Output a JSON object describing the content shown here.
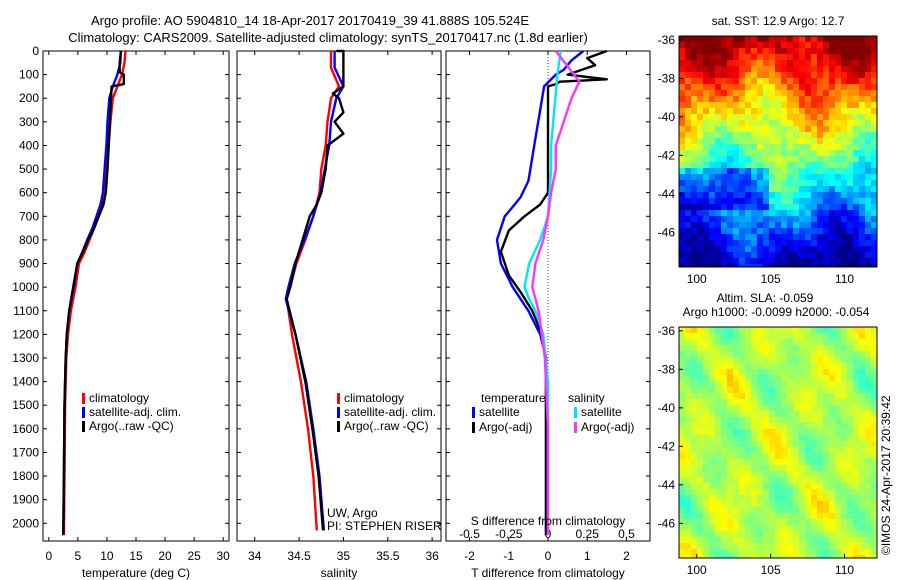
{
  "header": {
    "line1": "Argo profile: AO 5904810_14 18-Apr-2017 20170419_39 41.888S 105.524E",
    "line2": "Climatology: CARS2009. Satellite-adjusted climatology: synTS_20170417.nc (1.8d earlier)"
  },
  "credit": "©IMOS 24-Apr-2017 20:39:42",
  "colors": {
    "climatology": "#ff0000",
    "satellite": "#0000ff",
    "argo": "#000000",
    "salinity_satellite": "#00e5ff",
    "salinity_argo": "#ff33ff"
  },
  "chart_data": [
    {
      "id": "temperature",
      "type": "line",
      "xlabel": "temperature (deg C)",
      "ylabel": "",
      "xlim": [
        -1,
        31
      ],
      "ylim": [
        2075,
        0
      ],
      "xticks": [
        0,
        5,
        10,
        15,
        20,
        25,
        30
      ],
      "yticks": [
        0,
        100,
        200,
        300,
        400,
        500,
        600,
        700,
        800,
        900,
        1000,
        1100,
        1200,
        1300,
        1400,
        1500,
        1600,
        1700,
        1800,
        1900,
        2000
      ],
      "legend": [
        "climatology",
        "satellite-adj. clim.",
        "Argo(..raw -QC)"
      ],
      "series": [
        {
          "name": "climatology",
          "color": "#ff0000",
          "x": [
            13.2,
            13.0,
            12.6,
            11.8,
            11.0,
            10.6,
            10.3,
            10.0,
            9.6,
            9.1,
            8.4,
            7.8,
            7.0,
            6.2,
            5.2,
            4.6,
            3.8,
            3.3,
            3.0,
            2.8,
            2.7,
            2.6
          ],
          "y": [
            0,
            50,
            100,
            150,
            200,
            300,
            400,
            500,
            600,
            650,
            700,
            750,
            800,
            850,
            900,
            1000,
            1100,
            1200,
            1300,
            1500,
            1800,
            2050
          ]
        },
        {
          "name": "satellite-adj. clim.",
          "color": "#0000ff",
          "x": [
            12.4,
            12.3,
            11.8,
            11.0,
            10.4,
            10.1,
            9.9,
            9.6,
            9.3,
            8.9,
            8.2,
            7.5,
            6.6,
            5.8,
            4.9,
            4.3,
            3.5,
            3.1,
            2.9,
            2.7,
            2.6,
            2.5
          ],
          "y": [
            0,
            50,
            100,
            150,
            200,
            300,
            400,
            500,
            600,
            650,
            700,
            750,
            800,
            850,
            900,
            1000,
            1100,
            1200,
            1300,
            1500,
            1800,
            2050
          ]
        },
        {
          "name": "Argo(..raw -QC)",
          "color": "#000000",
          "x": [
            12.4,
            12.2,
            12.2,
            12.9,
            12.9,
            10.8,
            10.3,
            10.1,
            9.8,
            9.4,
            8.6,
            7.8,
            6.8,
            5.9,
            4.9,
            4.2,
            3.5,
            3.1,
            2.9,
            2.7,
            2.6,
            2.5
          ],
          "y": [
            0,
            50,
            90,
            100,
            140,
            150,
            400,
            500,
            600,
            650,
            700,
            750,
            800,
            850,
            900,
            1000,
            1100,
            1200,
            1300,
            1500,
            1800,
            2050
          ]
        }
      ]
    },
    {
      "id": "salinity",
      "type": "line",
      "xlabel": "salinity",
      "xlim": [
        33.8,
        36.1
      ],
      "ylim": [
        2075,
        0
      ],
      "xticks": [
        34,
        34.5,
        35,
        35.5,
        36
      ],
      "legend": [
        "climatology",
        "satellite-adj. clim.",
        "Argo(..raw -QC)"
      ],
      "annotation": [
        "UW, Argo",
        "PI: STEPHEN RISER"
      ],
      "series": [
        {
          "name": "climatology",
          "color": "#ff0000",
          "x": [
            34.86,
            34.86,
            34.95,
            34.86,
            34.82,
            34.8,
            34.75,
            34.73,
            34.66,
            34.57,
            34.47,
            34.4,
            34.36,
            34.42,
            34.52,
            34.6,
            34.66,
            34.7
          ],
          "y": [
            0,
            70,
            150,
            200,
            300,
            400,
            500,
            600,
            700,
            800,
            900,
            1000,
            1050,
            1200,
            1400,
            1600,
            1800,
            2030
          ]
        },
        {
          "name": "satellite-adj. clim.",
          "color": "#0000ff",
          "x": [
            34.9,
            34.9,
            35.0,
            34.92,
            34.86,
            34.84,
            34.79,
            34.74,
            34.66,
            34.56,
            34.45,
            34.38,
            34.35,
            34.46,
            34.58,
            34.66,
            34.73,
            34.78
          ],
          "y": [
            0,
            70,
            150,
            200,
            300,
            400,
            500,
            600,
            700,
            800,
            900,
            1000,
            1050,
            1200,
            1400,
            1600,
            1800,
            2030
          ]
        },
        {
          "name": "Argo(..raw -QC)",
          "color": "#000000",
          "x": [
            35.0,
            34.93,
            35.0,
            35.0,
            35.0,
            35.0,
            34.88,
            34.95,
            35.0,
            34.9,
            35.0,
            34.82,
            34.8,
            34.75,
            34.7,
            34.62,
            34.54,
            34.46,
            34.4,
            34.36,
            34.46,
            34.57,
            34.65,
            34.72,
            34.77
          ],
          "y": [
            0,
            0,
            0,
            80,
            120,
            150,
            180,
            200,
            260,
            300,
            350,
            400,
            500,
            600,
            650,
            700,
            800,
            900,
            1000,
            1050,
            1200,
            1400,
            1600,
            1800,
            2030
          ]
        }
      ]
    },
    {
      "id": "difference",
      "type": "line",
      "xlabel": "T difference from climatology",
      "xlabel2": "S difference from climatology",
      "xlim": [
        -2.6,
        2.6
      ],
      "x2lim": [
        -0.65,
        0.65
      ],
      "ylim": [
        2075,
        0
      ],
      "xticks": [
        -2,
        -1,
        0,
        1,
        2
      ],
      "x2ticks": [
        -0.5,
        -0.25,
        0,
        0.25,
        0.5
      ],
      "legend_titles": [
        "temperature",
        "salinity"
      ],
      "legend": [
        "satellite",
        "Argo(-adj)",
        "satellite",
        "Argo(-adj)"
      ],
      "series": [
        {
          "name": "temperature satellite",
          "color": "#0000ff",
          "x": [
            0.9,
            0.6,
            0.4,
            0.2,
            -0.1,
            -0.2,
            -0.3,
            -0.4,
            -0.5,
            -0.7,
            -0.9,
            -1.1,
            -1.3,
            -1.2,
            -0.9,
            -0.5,
            -0.2,
            -0.05,
            -0.05,
            -0.05
          ],
          "y": [
            0,
            40,
            80,
            100,
            150,
            250,
            350,
            450,
            550,
            620,
            660,
            700,
            800,
            900,
            1000,
            1100,
            1200,
            1300,
            1600,
            2050
          ]
        },
        {
          "name": "temperature Argo(-adj)",
          "color": "#000000",
          "x": [
            1.5,
            1.0,
            1.2,
            0.5,
            1.0,
            1.5,
            0.3,
            0.2,
            0.0,
            0.0,
            0.0,
            0.0,
            -0.2,
            -0.6,
            -1.0,
            -1.2,
            -1.0,
            -0.7,
            -0.4,
            -0.15,
            -0.05,
            -0.05,
            -0.05
          ],
          "y": [
            0,
            30,
            60,
            100,
            110,
            120,
            130,
            140,
            150,
            250,
            400,
            600,
            650,
            700,
            760,
            850,
            950,
            1020,
            1100,
            1200,
            1300,
            1600,
            2050
          ]
        },
        {
          "name": "salinity satellite",
          "color": "#00e5ff",
          "x": [
            0.08,
            0.06,
            0.04,
            0.02,
            0.02,
            0.01,
            0.0,
            -0.05,
            -0.12,
            -0.15,
            -0.12,
            -0.08,
            -0.03,
            0.0,
            0.0,
            0.0
          ],
          "y": [
            0,
            100,
            250,
            400,
            500,
            600,
            700,
            800,
            900,
            1000,
            1050,
            1100,
            1200,
            1400,
            1700,
            2050
          ]
        },
        {
          "name": "salinity Argo(-adj)",
          "color": "#ff33ff",
          "x": [
            0.05,
            0.12,
            0.2,
            0.15,
            0.1,
            0.05,
            0.05,
            0.02,
            0.0,
            -0.03,
            -0.08,
            -0.1,
            -0.06,
            -0.02,
            0.0,
            0.0
          ],
          "y": [
            0,
            60,
            130,
            200,
            300,
            400,
            500,
            600,
            700,
            800,
            900,
            1000,
            1100,
            1300,
            1600,
            2050
          ]
        }
      ]
    },
    {
      "id": "sst-map",
      "type": "heatmap",
      "title": "sat. SST: 12.9 Argo: 12.7",
      "xlim": [
        98.8,
        112.2
      ],
      "ylim": [
        -47.8,
        -35.8
      ],
      "xticks": [
        100,
        105,
        110
      ],
      "yticks": [
        -36,
        -38,
        -40,
        -42,
        -44,
        -46
      ]
    },
    {
      "id": "sla-map",
      "type": "heatmap",
      "title": "Altim. SLA: -0.059",
      "subtitle": "Argo h1000: -0.0099 h2000: -0.054",
      "xlim": [
        98.8,
        112.2
      ],
      "ylim": [
        -47.8,
        -35.8
      ],
      "xticks": [
        100,
        105,
        110
      ],
      "yticks": [
        -36,
        -38,
        -40,
        -42,
        -44,
        -46
      ]
    }
  ]
}
